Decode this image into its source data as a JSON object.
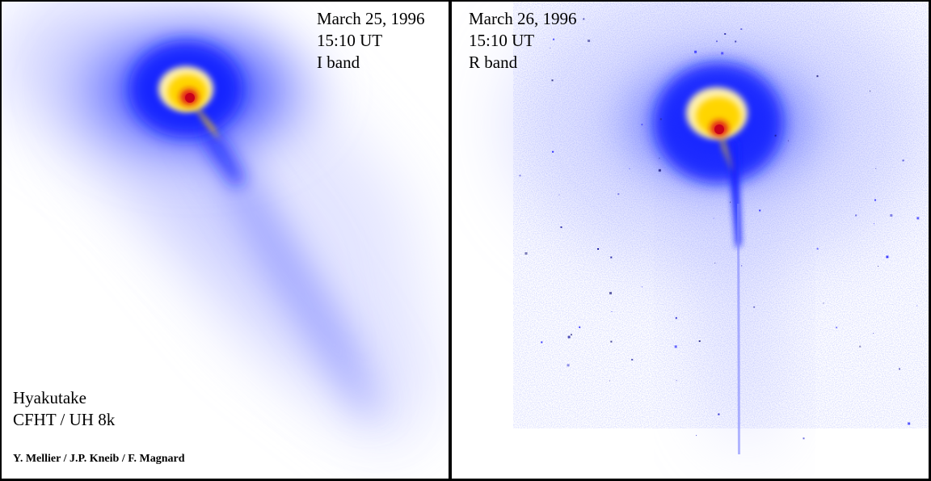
{
  "panels": [
    {
      "date": "March 25, 1996",
      "time": "15:10 UT",
      "band": "I band"
    },
    {
      "date": "March 26, 1996",
      "time": "15:10 UT",
      "band": "R band"
    }
  ],
  "object": {
    "name": "Hyakutake",
    "instrument": "CFHT / UH 8k"
  },
  "credits": "Y. Mellier /  J.P. Kneib / F. Magnard",
  "colors": {
    "background": "#ffffff",
    "coma_outer": "#1f2bff",
    "coma_mid": "#ffd400",
    "nucleus": "#e0141e",
    "frame": "#000000"
  }
}
